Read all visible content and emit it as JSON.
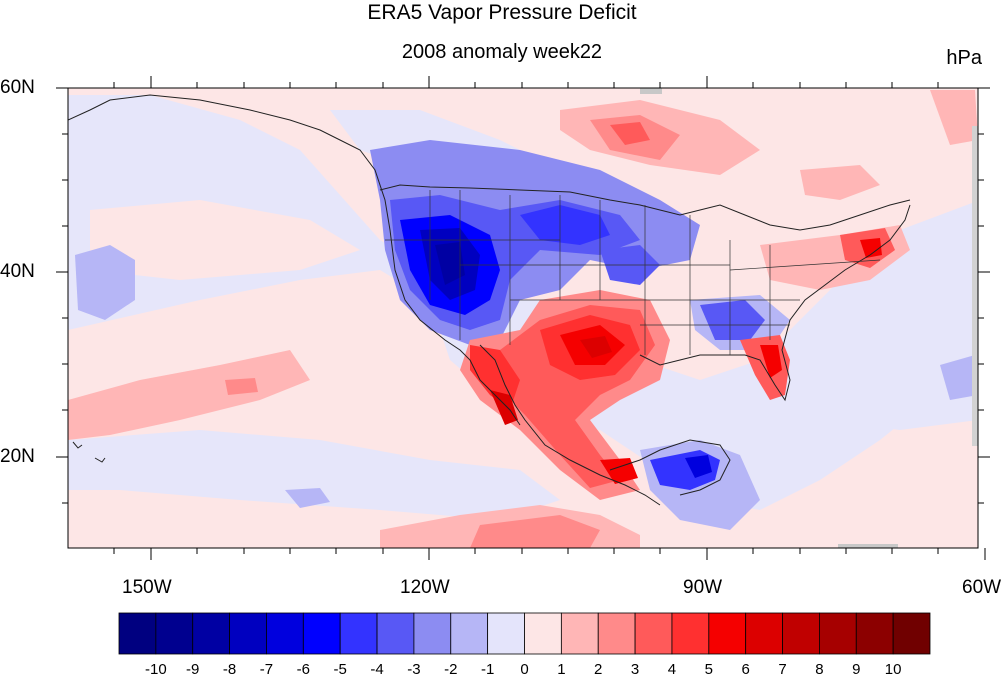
{
  "title": "ERA5 Vapor Pressure Deficit",
  "subtitle": "2008 anomaly week22",
  "units": "hPa",
  "axes": {
    "lat_labels": [
      "60N",
      "40N",
      "20N"
    ],
    "lon_labels": [
      "150W",
      "120W",
      "90W",
      "60W"
    ]
  },
  "colorbar": {
    "labels": [
      "-10",
      "-9",
      "-8",
      "-7",
      "-6",
      "-5",
      "-4",
      "-3",
      "-2",
      "-1",
      "0",
      "1",
      "2",
      "3",
      "4",
      "5",
      "6",
      "7",
      "8",
      "9",
      "10"
    ],
    "colors": [
      "#000080",
      "#00008f",
      "#0000a3",
      "#0000c0",
      "#0000de",
      "#0000ff",
      "#3333ff",
      "#5858f5",
      "#8c8cf2",
      "#b6b6f6",
      "#e4e4fb",
      "#fde6e6",
      "#ffb6b6",
      "#ff8a8a",
      "#ff5a5a",
      "#ff3030",
      "#f50000",
      "#dc0000",
      "#c00000",
      "#a60000",
      "#8c0000",
      "#700000"
    ]
  },
  "colors": {
    "background": "#e6e6fa",
    "neutral_positive": "#fde6e6",
    "frame": "#000000"
  }
}
